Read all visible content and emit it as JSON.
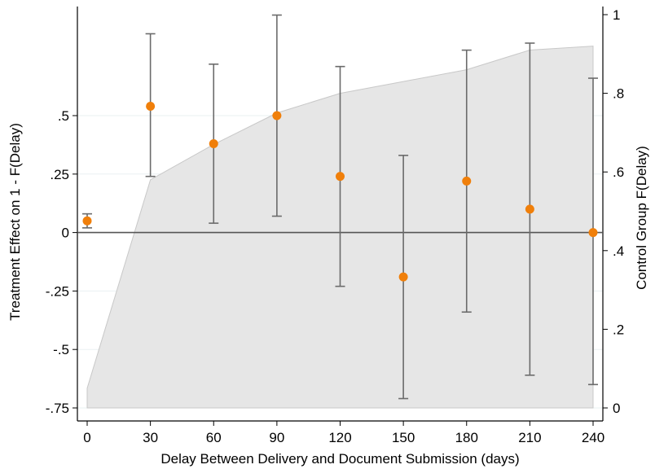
{
  "chart_data": {
    "type": "scatter",
    "title": "",
    "xlabel": "Delay Between Delivery and Document Submission (days)",
    "ylabel_left": "Treatment Effect on 1 - F(Delay)",
    "ylabel_right": "Control Group F(Delay)",
    "x_ticks": [
      0,
      30,
      60,
      90,
      120,
      150,
      180,
      210,
      240
    ],
    "x_tick_labels": [
      "0",
      "30",
      "60",
      "90",
      "120",
      "150",
      "180",
      "210",
      "240"
    ],
    "xlim": [
      0,
      240
    ],
    "y_left_ticks": [
      -0.75,
      -0.5,
      -0.25,
      0,
      0.25,
      0.5
    ],
    "y_left_tick_labels": [
      "-.75",
      "-.5",
      "-.25",
      "0",
      ".25",
      ".5"
    ],
    "ylim_left": [
      -0.75,
      0.85
    ],
    "y_right_ticks": [
      0,
      0.2,
      0.4,
      0.6,
      0.8,
      1
    ],
    "y_right_tick_labels": [
      "0",
      ".2",
      ".4",
      ".6",
      ".8",
      "1"
    ],
    "ylim_right": [
      0,
      1.0
    ],
    "grid": true,
    "zero_line": true,
    "series": [
      {
        "kind": "point_estimates_with_ci",
        "axis": "left",
        "color": "#f07f0a",
        "points": [
          {
            "x": 0,
            "y": 0.05,
            "lo": 0.02,
            "hi": 0.08
          },
          {
            "x": 30,
            "y": 0.54,
            "lo": 0.24,
            "hi": 0.85
          },
          {
            "x": 60,
            "y": 0.38,
            "lo": 0.04,
            "hi": 0.72
          },
          {
            "x": 90,
            "y": 0.5,
            "lo": 0.07,
            "hi": 0.93
          },
          {
            "x": 120,
            "y": 0.24,
            "lo": -0.23,
            "hi": 0.71
          },
          {
            "x": 150,
            "y": -0.19,
            "lo": -0.71,
            "hi": 0.33
          },
          {
            "x": 180,
            "y": 0.22,
            "lo": -0.34,
            "hi": 0.78
          },
          {
            "x": 210,
            "y": 0.1,
            "lo": -0.61,
            "hi": 0.81
          },
          {
            "x": 240,
            "y": 0.0,
            "lo": -0.65,
            "hi": 0.66
          }
        ]
      },
      {
        "kind": "area",
        "axis": "right",
        "color": "#e6e6e6",
        "x": [
          0,
          0,
          30,
          60,
          90,
          120,
          150,
          180,
          210,
          240,
          240
        ],
        "y": [
          0,
          0.05,
          0.58,
          0.67,
          0.75,
          0.8,
          0.83,
          0.86,
          0.91,
          0.92,
          0
        ]
      }
    ]
  }
}
